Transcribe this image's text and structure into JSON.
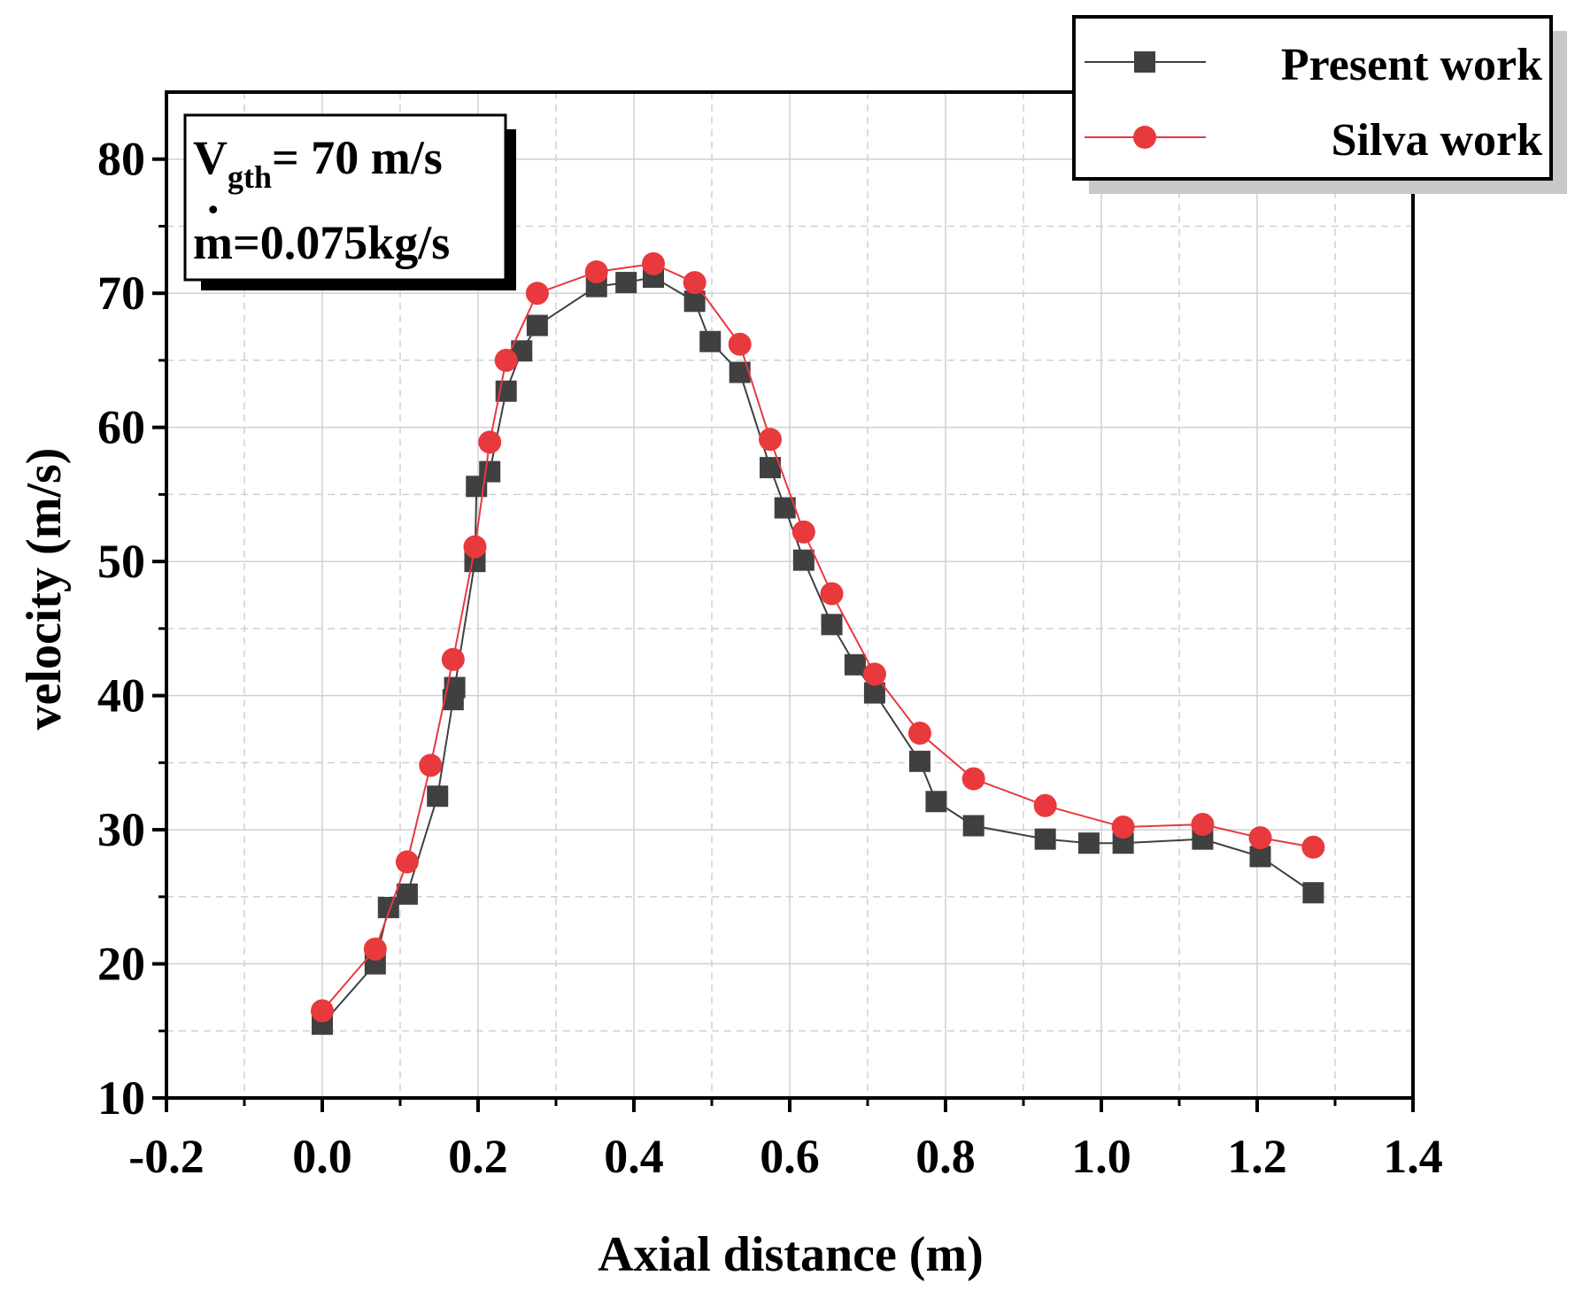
{
  "chart_data": {
    "type": "line",
    "title": "",
    "xlabel": "Axial distance (m)",
    "ylabel": "velocity (m/s)",
    "xlim": [
      -0.2,
      1.4
    ],
    "ylim": [
      10,
      85
    ],
    "xticks": [
      "-0.2",
      "0.0",
      "0.2",
      "0.4",
      "0.6",
      "0.8",
      "1.0",
      "1.2",
      "1.4"
    ],
    "yticks": [
      "10",
      "20",
      "30",
      "40",
      "50",
      "60",
      "70",
      "80"
    ],
    "grid": true,
    "legend_position": "top-right",
    "series": [
      {
        "name": "Present work",
        "color": "#404040",
        "marker": "square",
        "x": [
          0.0,
          0.068,
          0.085,
          0.109,
          0.148,
          0.168,
          0.17,
          0.196,
          0.198,
          0.215,
          0.236,
          0.256,
          0.276,
          0.352,
          0.39,
          0.425,
          0.478,
          0.498,
          0.536,
          0.575,
          0.594,
          0.618,
          0.654,
          0.684,
          0.709,
          0.767,
          0.788,
          0.836,
          0.928,
          0.984,
          1.028,
          1.13,
          1.204,
          1.272
        ],
        "y": [
          15.5,
          20.0,
          24.2,
          25.2,
          32.5,
          39.7,
          40.6,
          50.0,
          55.6,
          56.7,
          62.7,
          65.7,
          67.6,
          70.5,
          70.8,
          71.2,
          69.4,
          66.4,
          64.1,
          57.0,
          54.0,
          50.1,
          45.3,
          42.3,
          40.2,
          35.1,
          32.1,
          30.3,
          29.3,
          29.0,
          29.0,
          29.3,
          28.0,
          25.3
        ]
      },
      {
        "name": "Silva work",
        "color": "#e8393d",
        "marker": "circle",
        "x": [
          0.0,
          0.068,
          0.109,
          0.139,
          0.168,
          0.196,
          0.215,
          0.236,
          0.276,
          0.352,
          0.425,
          0.478,
          0.536,
          0.575,
          0.618,
          0.654,
          0.709,
          0.767,
          0.836,
          0.928,
          1.028,
          1.13,
          1.204,
          1.272
        ],
        "y": [
          16.5,
          21.1,
          27.6,
          34.8,
          42.7,
          51.1,
          58.9,
          65.0,
          70.0,
          71.6,
          72.2,
          70.8,
          66.2,
          59.1,
          52.2,
          47.6,
          41.6,
          37.2,
          33.8,
          31.8,
          30.2,
          30.4,
          29.4,
          28.7
        ]
      }
    ],
    "annotation": {
      "line1_main": "V",
      "line1_sub": "gth",
      "line1_rest": "= 70 m/s",
      "line2": "m=0.075kg/s",
      "line2_dot": "."
    }
  }
}
